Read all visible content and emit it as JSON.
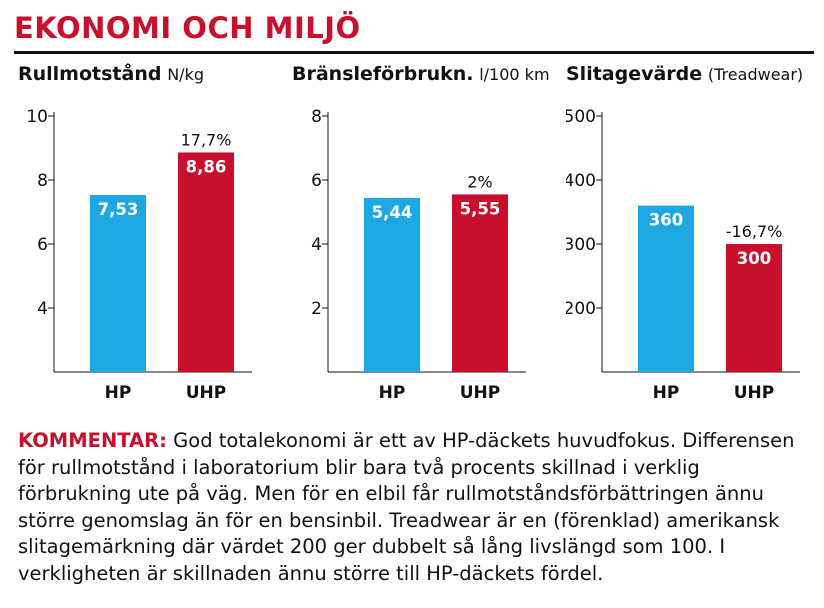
{
  "header": {
    "title": "EKONOMI OCH MILJÖ"
  },
  "colors": {
    "hp": "#1ea8e3",
    "uhp": "#c8102e",
    "accent": "#c8102e"
  },
  "chart_data": [
    {
      "type": "bar",
      "title": "Rullmotstånd",
      "unit": "N/kg",
      "categories": [
        "HP",
        "UHP"
      ],
      "values": [
        7.53,
        8.86
      ],
      "value_labels": [
        "7,53",
        "8,86"
      ],
      "annotations": [
        "",
        "17,7%"
      ],
      "yticks": [
        4,
        6,
        8,
        10
      ],
      "ylim": [
        2,
        10
      ]
    },
    {
      "type": "bar",
      "title": "Bränsleförbrukn.",
      "unit": "l/100 km",
      "categories": [
        "HP",
        "UHP"
      ],
      "values": [
        5.44,
        5.55
      ],
      "value_labels": [
        "5,44",
        "5,55"
      ],
      "annotations": [
        "",
        "2%"
      ],
      "yticks": [
        2,
        4,
        6,
        8
      ],
      "ylim": [
        0,
        8
      ]
    },
    {
      "type": "bar",
      "title": "Slitagevärde",
      "unit": "(Treadwear)",
      "categories": [
        "HP",
        "UHP"
      ],
      "values": [
        360,
        300
      ],
      "value_labels": [
        "360",
        "300"
      ],
      "annotations": [
        "",
        "-16,7%"
      ],
      "yticks": [
        200,
        300,
        400,
        500
      ],
      "ylim": [
        100,
        500
      ]
    }
  ],
  "comment": {
    "lead": "KOMMENTAR:",
    "text": " God totalekonomi är ett av HP-däckets huvudfokus. Differensen för rullmotstånd i laboratorium blir bara två procents skillnad i verklig förbrukning ute på väg. Men för en elbil får rullmotståndsförbättringen ännu större genomslag än för en bensinbil. Treadwear är en (förenklad) amerikansk slitagemärkning där värdet 200 ger dubbelt så lång livslängd som 100. I verkligheten är skillnaden ännu större till HP-däckets fördel."
  }
}
